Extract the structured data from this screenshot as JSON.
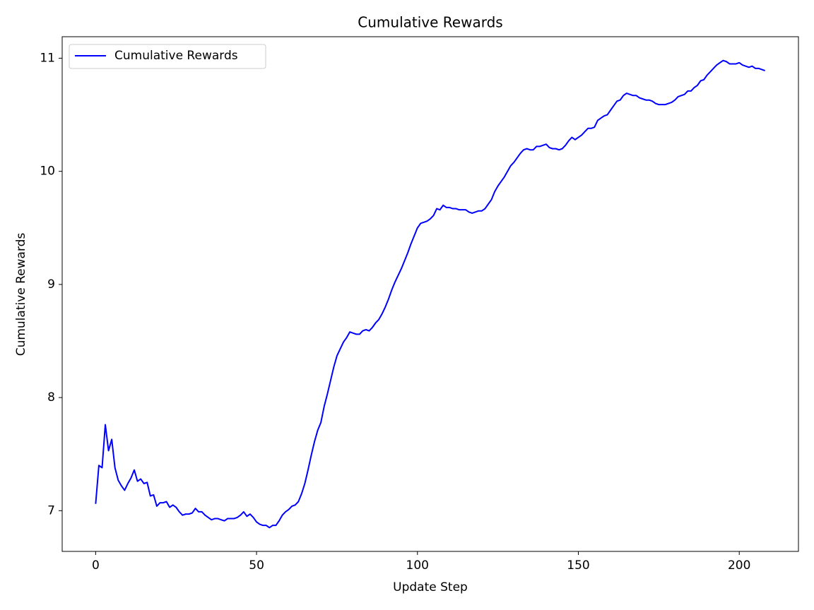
{
  "chart_data": {
    "type": "line",
    "title": "Cumulative Rewards",
    "x_label": "Update Step",
    "y_label": "Cumulative Rewards",
    "x": [
      0,
      1,
      2,
      3,
      4,
      5,
      6,
      7,
      8,
      9,
      10,
      11,
      12,
      13,
      14,
      15,
      16,
      17,
      18,
      19,
      20,
      21,
      22,
      23,
      24,
      25,
      26,
      27,
      28,
      29,
      30,
      31,
      32,
      33,
      34,
      35,
      36,
      37,
      38,
      39,
      40,
      41,
      42,
      43,
      44,
      45,
      46,
      47,
      48,
      49,
      50,
      51,
      52,
      53,
      54,
      55,
      56,
      57,
      58,
      59,
      60,
      61,
      62,
      63,
      64,
      65,
      66,
      67,
      68,
      69,
      70,
      71,
      72,
      73,
      74,
      75,
      76,
      77,
      78,
      79,
      80,
      81,
      82,
      83,
      84,
      85,
      86,
      87,
      88,
      89,
      90,
      91,
      92,
      93,
      94,
      95,
      96,
      97,
      98,
      99,
      100,
      101,
      102,
      103,
      104,
      105,
      106,
      107,
      108,
      109,
      110,
      111,
      112,
      113,
      114,
      115,
      116,
      117,
      118,
      119,
      120,
      121,
      122,
      123,
      124,
      125,
      126,
      127,
      128,
      129,
      130,
      131,
      132,
      133,
      134,
      135,
      136,
      137,
      138,
      139,
      140,
      141,
      142,
      143,
      144,
      145,
      146,
      147,
      148,
      149,
      150,
      151,
      152,
      153,
      154,
      155,
      156,
      157,
      158,
      159,
      160,
      161,
      162,
      163,
      164,
      165,
      166,
      167,
      168,
      169,
      170,
      171,
      172,
      173,
      174,
      175,
      176,
      177,
      178,
      179,
      180,
      181,
      182,
      183,
      184,
      185,
      186,
      187,
      188,
      189,
      190,
      191,
      192,
      193,
      194,
      195,
      196,
      197,
      198,
      199,
      200,
      201,
      202,
      203,
      204,
      205,
      206,
      207,
      208
    ],
    "series": [
      {
        "name": "Cumulative Rewards",
        "color": "#0000ff",
        "values": [
          7.06,
          7.4,
          7.38,
          7.76,
          7.53,
          7.63,
          7.38,
          7.27,
          7.22,
          7.18,
          7.24,
          7.29,
          7.36,
          7.26,
          7.28,
          7.24,
          7.25,
          7.13,
          7.14,
          7.04,
          7.07,
          7.07,
          7.08,
          7.03,
          7.05,
          7.03,
          6.99,
          6.96,
          6.97,
          6.97,
          6.98,
          7.02,
          6.99,
          6.99,
          6.96,
          6.94,
          6.92,
          6.93,
          6.93,
          6.92,
          6.91,
          6.93,
          6.93,
          6.93,
          6.94,
          6.96,
          6.99,
          6.95,
          6.97,
          6.94,
          6.9,
          6.88,
          6.87,
          6.87,
          6.85,
          6.87,
          6.87,
          6.91,
          6.96,
          6.99,
          7.01,
          7.04,
          7.05,
          7.08,
          7.15,
          7.24,
          7.36,
          7.49,
          7.61,
          7.71,
          7.78,
          7.92,
          8.03,
          8.15,
          8.27,
          8.37,
          8.43,
          8.49,
          8.53,
          8.58,
          8.57,
          8.56,
          8.56,
          8.59,
          8.6,
          8.59,
          8.62,
          8.66,
          8.69,
          8.74,
          8.8,
          8.87,
          8.95,
          9.02,
          9.08,
          9.14,
          9.21,
          9.28,
          9.36,
          9.43,
          9.5,
          9.54,
          9.55,
          9.56,
          9.58,
          9.61,
          9.67,
          9.66,
          9.7,
          9.68,
          9.68,
          9.67,
          9.67,
          9.66,
          9.66,
          9.66,
          9.64,
          9.63,
          9.64,
          9.65,
          9.65,
          9.67,
          9.71,
          9.75,
          9.82,
          9.87,
          9.91,
          9.95,
          10.0,
          10.05,
          10.08,
          10.12,
          10.16,
          10.19,
          10.2,
          10.19,
          10.19,
          10.22,
          10.22,
          10.23,
          10.24,
          10.21,
          10.2,
          10.2,
          10.19,
          10.2,
          10.23,
          10.27,
          10.3,
          10.28,
          10.3,
          10.32,
          10.35,
          10.38,
          10.38,
          10.39,
          10.45,
          10.47,
          10.49,
          10.5,
          10.54,
          10.58,
          10.62,
          10.63,
          10.67,
          10.69,
          10.68,
          10.67,
          10.67,
          10.65,
          10.64,
          10.63,
          10.63,
          10.62,
          10.6,
          10.59,
          10.59,
          10.59,
          10.6,
          10.61,
          10.63,
          10.66,
          10.67,
          10.68,
          10.71,
          10.71,
          10.74,
          10.76,
          10.8,
          10.81,
          10.85,
          10.88,
          10.91,
          10.94,
          10.96,
          10.98,
          10.97,
          10.95,
          10.95,
          10.95,
          10.96,
          10.94,
          10.93,
          10.92,
          10.93,
          10.91,
          10.91,
          10.9,
          10.89
        ]
      }
    ],
    "xlim": [
      -10.4,
      218.4
    ],
    "ylim": [
      6.64,
      11.19
    ],
    "xticks": [
      0,
      50,
      100,
      150,
      200
    ],
    "yticks": [
      7,
      8,
      9,
      10,
      11
    ],
    "legend": "upper left"
  }
}
